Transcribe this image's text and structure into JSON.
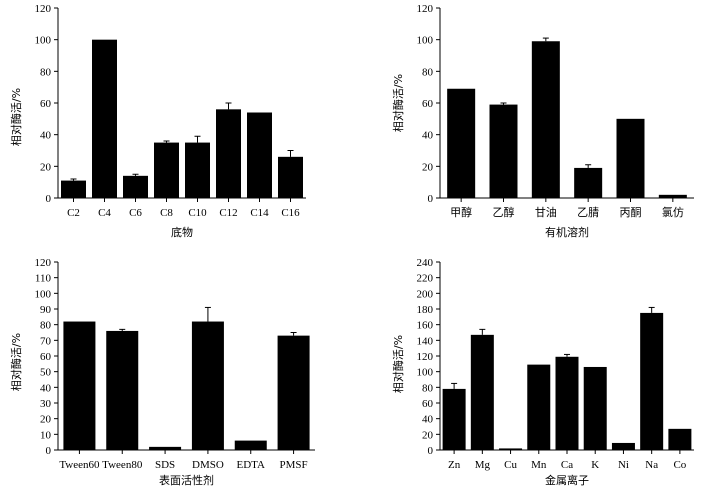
{
  "chart_data": [
    {
      "type": "bar",
      "title": "",
      "xlabel": "底物",
      "ylabel": "相对酶活/%",
      "ylim": [
        0,
        120
      ],
      "yticks": [
        0,
        20,
        40,
        60,
        80,
        100,
        120
      ],
      "categories": [
        "C2",
        "C4",
        "C6",
        "C8",
        "C10",
        "C12",
        "C14",
        "C16"
      ],
      "values": [
        11,
        100,
        14,
        35,
        35,
        56,
        54,
        26
      ],
      "errors": [
        1,
        0,
        1,
        1,
        4,
        4,
        0,
        4
      ]
    },
    {
      "type": "bar",
      "title": "",
      "xlabel": "有机溶剂",
      "ylabel": "相对酶活/%",
      "ylim": [
        0,
        120
      ],
      "yticks": [
        0,
        20,
        40,
        60,
        80,
        100,
        120
      ],
      "categories": [
        "甲醇",
        "乙醇",
        "甘油",
        "乙腈",
        "丙酮",
        "氯仿"
      ],
      "values": [
        69,
        59,
        99,
        19,
        50,
        2
      ],
      "errors": [
        0,
        1,
        2,
        2,
        0,
        0
      ]
    },
    {
      "type": "bar",
      "title": "",
      "xlabel": "表面活性剂",
      "ylabel": "相对酶活/%",
      "ylim": [
        0,
        120
      ],
      "yticks": [
        0,
        10,
        20,
        30,
        40,
        50,
        60,
        70,
        80,
        90,
        100,
        110,
        120
      ],
      "categories": [
        "Tween60",
        "Tween80",
        "SDS",
        "DMSO",
        "EDTA",
        "PMSF"
      ],
      "values": [
        82,
        76,
        2,
        82,
        6,
        73
      ],
      "errors": [
        0,
        1,
        0,
        9,
        0,
        2
      ]
    },
    {
      "type": "bar",
      "title": "",
      "xlabel": "金属离子",
      "ylabel": "相对酶活/%",
      "ylim": [
        0,
        240
      ],
      "yticks": [
        0,
        20,
        40,
        60,
        80,
        100,
        120,
        140,
        160,
        180,
        200,
        220,
        240
      ],
      "categories": [
        "Zn",
        "Mg",
        "Cu",
        "Mn",
        "Ca",
        "K",
        "Ni",
        "Na",
        "Co"
      ],
      "values": [
        78,
        147,
        2,
        109,
        119,
        106,
        9,
        175,
        27
      ],
      "errors": [
        7,
        7,
        0,
        0,
        3,
        0,
        0,
        7,
        0
      ]
    }
  ]
}
